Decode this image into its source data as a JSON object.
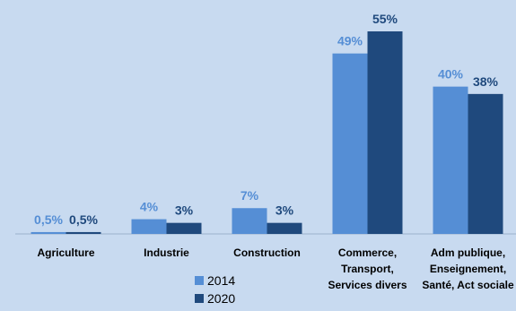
{
  "chart_data": {
    "type": "bar",
    "categories": [
      [
        "Agriculture"
      ],
      [
        "Industrie"
      ],
      [
        "Construction"
      ],
      [
        "Commerce,",
        "Transport,",
        "Services divers"
      ],
      [
        "Adm publique,",
        "Enseignement,",
        "Santé, Act sociale"
      ]
    ],
    "series": [
      {
        "name": "2014",
        "color": "#558ed5",
        "values": [
          0.5,
          4,
          7,
          49,
          40
        ],
        "labels": [
          "0,5%",
          "4%",
          "7%",
          "49%",
          "40%"
        ]
      },
      {
        "name": "2020",
        "color": "#1f497d",
        "values": [
          0.5,
          3,
          3,
          55,
          38
        ],
        "labels": [
          "0,5%",
          "3%",
          "3%",
          "55%",
          "38%"
        ]
      }
    ],
    "ylim": [
      0,
      60
    ],
    "grid": false,
    "legend_position": "bottom"
  }
}
